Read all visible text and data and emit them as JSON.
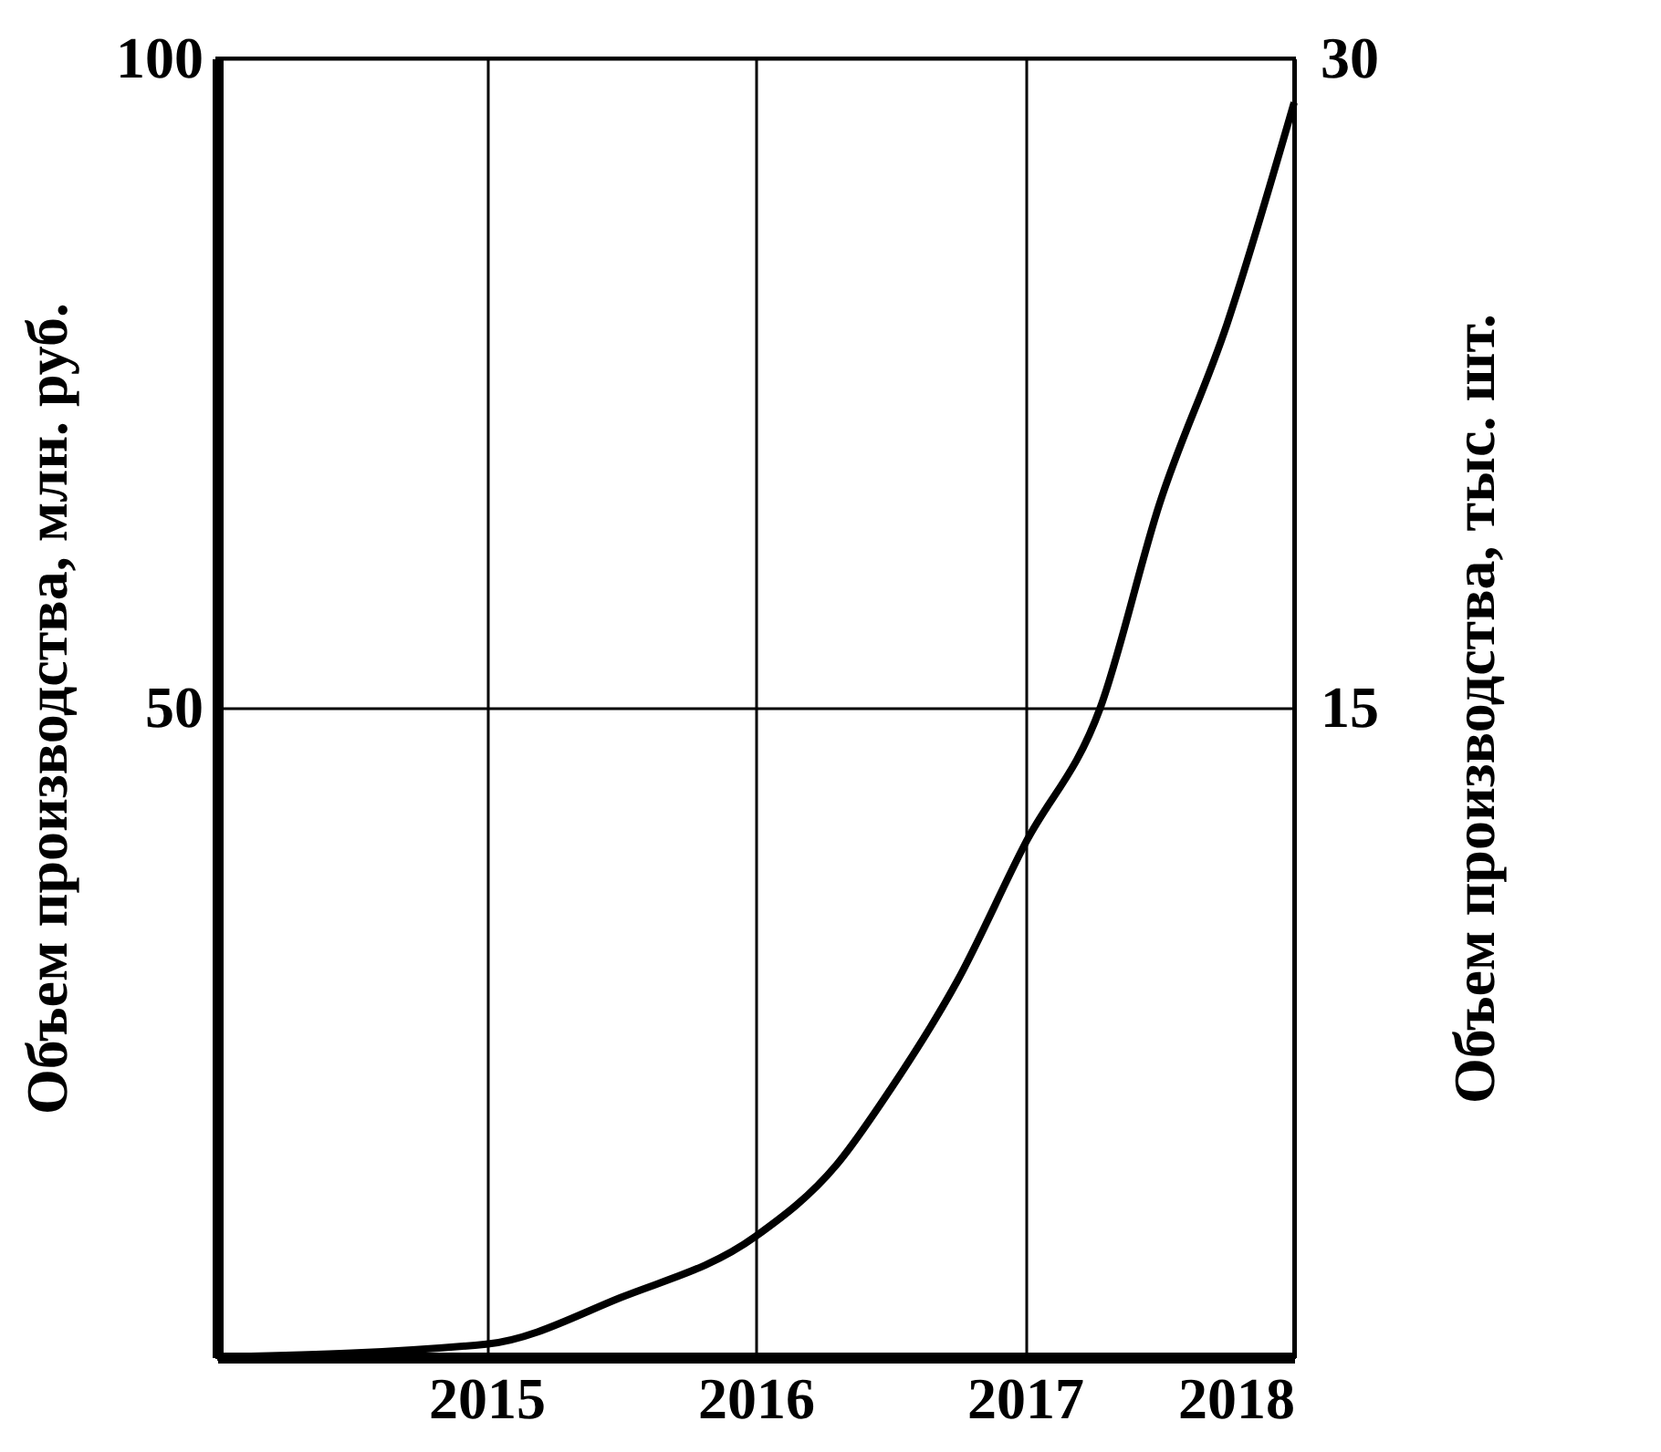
{
  "chart_data": {
    "type": "line",
    "ylabel": "Объем производства, млн. руб.",
    "y2label": "Объем производства, тыс. шт.",
    "x": [
      2014,
      2015,
      2015.5,
      2016,
      2016.3,
      2016.5,
      2016.75,
      2017,
      2017.28,
      2017.5,
      2017.75,
      2018
    ],
    "series": [
      {
        "color": "#000000",
        "values": [
          0,
          1,
          4.6,
          9.3,
          14.8,
          20.6,
          29,
          39.5,
          50,
          65.7,
          79.5,
          96.6
        ]
      }
    ],
    "xlim": [
      2014,
      2018
    ],
    "xticks": [
      2015,
      2016,
      2017,
      2018
    ],
    "ylim": [
      0,
      100
    ],
    "yticks": [
      50,
      100
    ],
    "y2lim": [
      0,
      30
    ],
    "y2ticks": [
      15,
      30
    ],
    "grid": true,
    "marker": "none",
    "line_style": "solid"
  }
}
